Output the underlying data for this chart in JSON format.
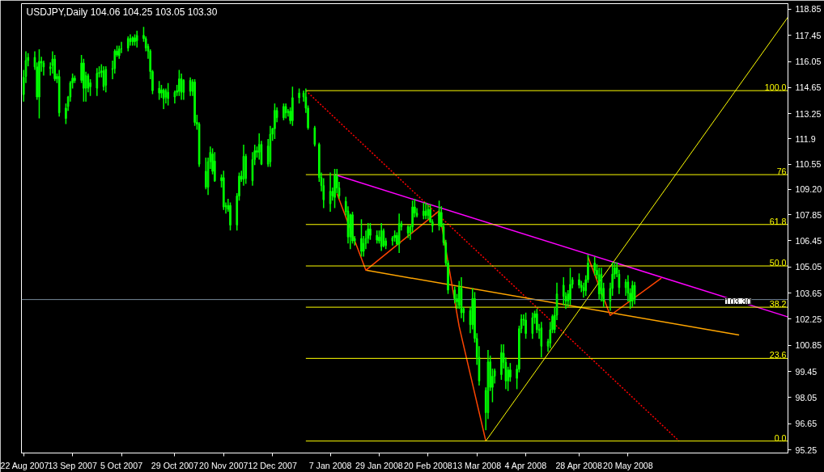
{
  "chart_data": {
    "type": "candlestick",
    "title": "USDJPY,Daily 104.06 104.25 103.05 103.30",
    "color": "#00ff00",
    "x": [
      "2007-08-22",
      "2007-08-23",
      "2007-08-24",
      "2007-08-27",
      "2007-08-28",
      "2007-08-29",
      "2007-08-30",
      "2007-08-31",
      "2007-09-03",
      "2007-09-04",
      "2007-09-05",
      "2007-09-06",
      "2007-09-07",
      "2007-09-10",
      "2007-09-11",
      "2007-09-12",
      "2007-09-13",
      "2007-09-14",
      "2007-09-17",
      "2007-09-18",
      "2007-09-19",
      "2007-09-20",
      "2007-09-21",
      "2007-09-24",
      "2007-09-25",
      "2007-09-26",
      "2007-09-27",
      "2007-09-28",
      "2007-10-01",
      "2007-10-02",
      "2007-10-03",
      "2007-10-04",
      "2007-10-05",
      "2007-10-08",
      "2007-10-09",
      "2007-10-10",
      "2007-10-11",
      "2007-10-12",
      "2007-10-15",
      "2007-10-16",
      "2007-10-17",
      "2007-10-18",
      "2007-10-19",
      "2007-10-22",
      "2007-10-23",
      "2007-10-24",
      "2007-10-25",
      "2007-10-26",
      "2007-10-29",
      "2007-10-30",
      "2007-10-31",
      "2007-11-01",
      "2007-11-02",
      "2007-11-05",
      "2007-11-06",
      "2007-11-07",
      "2007-11-08",
      "2007-11-09",
      "2007-11-12",
      "2007-11-13",
      "2007-11-14",
      "2007-11-15",
      "2007-11-16",
      "2007-11-19",
      "2007-11-20",
      "2007-11-21",
      "2007-11-22",
      "2007-11-23",
      "2007-11-26",
      "2007-11-27",
      "2007-11-28",
      "2007-11-29",
      "2007-11-30",
      "2007-12-03",
      "2007-12-04",
      "2007-12-05",
      "2007-12-06",
      "2007-12-07",
      "2007-12-10",
      "2007-12-11",
      "2007-12-12",
      "2007-12-13",
      "2007-12-14",
      "2007-12-17",
      "2007-12-18",
      "2007-12-19",
      "2007-12-20",
      "2007-12-21",
      "2007-12-24",
      "2007-12-26",
      "2007-12-27",
      "2007-12-28",
      "2007-12-31",
      "2008-01-02",
      "2008-01-03",
      "2008-01-04",
      "2008-01-07",
      "2008-01-08",
      "2008-01-09",
      "2008-01-10",
      "2008-01-11",
      "2008-01-14",
      "2008-01-15",
      "2008-01-16",
      "2008-01-17",
      "2008-01-18",
      "2008-01-21",
      "2008-01-22",
      "2008-01-23",
      "2008-01-24",
      "2008-01-25",
      "2008-01-28",
      "2008-01-29",
      "2008-01-30",
      "2008-01-31",
      "2008-02-01",
      "2008-02-04",
      "2008-02-05",
      "2008-02-06",
      "2008-02-07",
      "2008-02-08",
      "2008-02-11",
      "2008-02-12",
      "2008-02-13",
      "2008-02-14",
      "2008-02-15",
      "2008-02-18",
      "2008-02-19",
      "2008-02-20",
      "2008-02-21",
      "2008-02-22",
      "2008-02-25",
      "2008-02-26",
      "2008-02-27",
      "2008-02-28",
      "2008-02-29",
      "2008-03-03",
      "2008-03-04",
      "2008-03-05",
      "2008-03-06",
      "2008-03-07",
      "2008-03-10",
      "2008-03-11",
      "2008-03-12",
      "2008-03-13",
      "2008-03-14",
      "2008-03-17",
      "2008-03-18",
      "2008-03-19",
      "2008-03-20",
      "2008-03-21",
      "2008-03-24",
      "2008-03-25",
      "2008-03-26",
      "2008-03-27",
      "2008-03-28",
      "2008-03-31",
      "2008-04-01",
      "2008-04-02",
      "2008-04-03",
      "2008-04-04",
      "2008-04-07",
      "2008-04-08",
      "2008-04-09",
      "2008-04-10",
      "2008-04-11",
      "2008-04-14",
      "2008-04-15",
      "2008-04-16",
      "2008-04-17",
      "2008-04-18",
      "2008-04-21",
      "2008-04-22",
      "2008-04-23",
      "2008-04-24",
      "2008-04-25",
      "2008-04-28",
      "2008-04-29",
      "2008-04-30",
      "2008-05-01",
      "2008-05-02",
      "2008-05-05",
      "2008-05-06",
      "2008-05-07",
      "2008-05-08",
      "2008-05-09",
      "2008-05-12",
      "2008-05-13",
      "2008-05-14",
      "2008-05-15",
      "2008-05-16",
      "2008-05-19",
      "2008-05-20",
      "2008-05-21",
      "2008-05-22",
      "2008-05-23"
    ],
    "ohlc": [
      [
        114.28,
        115.6,
        113.9,
        115.21
      ],
      [
        115.25,
        116.6,
        114.9,
        116.1
      ],
      [
        116.1,
        116.5,
        115.8,
        116.27
      ],
      [
        116.27,
        116.6,
        115.6,
        115.76
      ],
      [
        115.76,
        116.0,
        114.0,
        114.15
      ],
      [
        114.15,
        116.7,
        113.0,
        116.06
      ],
      [
        116.06,
        116.3,
        115.5,
        115.97
      ],
      [
        115.97,
        116.1,
        115.3,
        115.76
      ],
      [
        115.76,
        116.0,
        115.3,
        115.67
      ],
      [
        115.84,
        116.6,
        115.4,
        116.18
      ],
      [
        116.18,
        116.4,
        115.0,
        115.12
      ],
      [
        115.12,
        115.4,
        114.9,
        115.25
      ],
      [
        115.25,
        115.6,
        113.1,
        113.3
      ],
      [
        113.55,
        113.8,
        112.7,
        113.0
      ],
      [
        113.64,
        114.2,
        113.4,
        114.15
      ],
      [
        114.15,
        115.0,
        113.9,
        114.91
      ],
      [
        114.91,
        115.4,
        114.6,
        115.16
      ],
      [
        115.16,
        115.3,
        114.9,
        115.03
      ],
      [
        115.04,
        116.4,
        114.9,
        115.97
      ],
      [
        115.97,
        116.2,
        113.9,
        114.62
      ],
      [
        114.62,
        115.5,
        113.9,
        115.29
      ],
      [
        115.29,
        115.4,
        114.4,
        114.62
      ],
      [
        114.7,
        115.1,
        114.2,
        114.91
      ],
      [
        114.62,
        115.7,
        114.2,
        115.42
      ],
      [
        115.42,
        115.8,
        115.2,
        115.46
      ],
      [
        115.46,
        115.9,
        115.2,
        115.55
      ],
      [
        115.55,
        115.8,
        114.5,
        114.7
      ],
      [
        114.78,
        115.8,
        114.4,
        115.63
      ],
      [
        115.63,
        116.1,
        115.1,
        115.67
      ],
      [
        115.67,
        116.7,
        115.4,
        116.61
      ],
      [
        116.61,
        116.9,
        116.3,
        116.4
      ],
      [
        116.36,
        116.9,
        116.2,
        116.73
      ],
      [
        116.73,
        117.1,
        116.5,
        116.73
      ],
      [
        116.77,
        117.4,
        116.6,
        117.28
      ],
      [
        117.28,
        117.5,
        116.9,
        117.11
      ],
      [
        117.11,
        117.4,
        116.9,
        117.32
      ],
      [
        117.32,
        117.5,
        116.9,
        117.11
      ],
      [
        117.16,
        117.7,
        116.8,
        117.45
      ],
      [
        117.45,
        117.9,
        117.1,
        117.28
      ],
      [
        117.28,
        117.4,
        116.6,
        116.78
      ],
      [
        116.86,
        117.0,
        116.2,
        116.61
      ],
      [
        116.61,
        116.7,
        115.1,
        115.51
      ],
      [
        115.51,
        115.6,
        114.3,
        114.49
      ],
      [
        114.62,
        115.0,
        114.0,
        114.36
      ],
      [
        114.36,
        114.8,
        114.1,
        114.53
      ],
      [
        114.53,
        114.6,
        113.5,
        114.07
      ],
      [
        114.15,
        114.6,
        113.8,
        114.49
      ],
      [
        114.4,
        114.9,
        113.7,
        114.07
      ],
      [
        114.15,
        114.5,
        113.8,
        114.4
      ],
      [
        114.4,
        114.8,
        114.2,
        114.49
      ],
      [
        114.45,
        115.6,
        114.2,
        115.12
      ],
      [
        115.12,
        115.4,
        114.0,
        114.4
      ],
      [
        114.4,
        115.1,
        114.0,
        115.04
      ],
      [
        115.04,
        115.2,
        114.2,
        114.45
      ],
      [
        114.45,
        115.1,
        114.2,
        114.95
      ],
      [
        114.95,
        115.1,
        112.6,
        112.79
      ],
      [
        112.79,
        113.2,
        112.4,
        112.7
      ],
      [
        112.7,
        112.8,
        110.4,
        110.55
      ],
      [
        110.17,
        110.9,
        109.2,
        109.32
      ],
      [
        109.32,
        110.9,
        108.9,
        110.68
      ],
      [
        110.68,
        111.5,
        110.3,
        111.19
      ],
      [
        111.1,
        111.4,
        110.0,
        110.17
      ],
      [
        110.72,
        111.2,
        109.6,
        109.66
      ],
      [
        109.66,
        110.0,
        109.3,
        109.83
      ],
      [
        109.83,
        110.2,
        108.1,
        108.26
      ],
      [
        108.26,
        108.5,
        107.9,
        108.34
      ],
      [
        108.34,
        108.7,
        108.0,
        108.13
      ],
      [
        108.34,
        108.5,
        107.0,
        107.29
      ],
      [
        107.29,
        109.0,
        107.0,
        108.85
      ],
      [
        108.85,
        110.1,
        108.6,
        109.91
      ],
      [
        109.91,
        110.2,
        109.6,
        109.74
      ],
      [
        109.74,
        111.6,
        109.4,
        110.97
      ],
      [
        110.97,
        111.1,
        109.5,
        109.78
      ],
      [
        109.66,
        111.2,
        109.4,
        110.8
      ],
      [
        110.8,
        111.6,
        110.5,
        111.27
      ],
      [
        111.27,
        111.5,
        110.9,
        111.19
      ],
      [
        111.19,
        112.2,
        110.8,
        111.61
      ],
      [
        111.61,
        111.8,
        110.5,
        110.55
      ],
      [
        110.55,
        111.9,
        110.4,
        111.52
      ],
      [
        110.68,
        112.6,
        110.4,
        112.16
      ],
      [
        112.16,
        112.5,
        111.8,
        112.45
      ],
      [
        112.45,
        113.8,
        111.9,
        113.43
      ],
      [
        113.43,
        113.6,
        112.8,
        113.04
      ],
      [
        113.04,
        113.8,
        112.9,
        113.64
      ],
      [
        113.64,
        113.8,
        113.0,
        113.3
      ],
      [
        113.3,
        113.5,
        113.1,
        113.39
      ],
      [
        113.39,
        113.6,
        112.7,
        112.88
      ],
      [
        112.88,
        114.7,
        112.6,
        114.11
      ],
      [
        114.11,
        114.6,
        113.8,
        114.36
      ],
      [
        114.36,
        114.5,
        113.9,
        114.15
      ],
      [
        114.15,
        114.6,
        113.3,
        113.55
      ],
      [
        113.55,
        113.7,
        112.4,
        112.5
      ],
      [
        112.5,
        112.6,
        111.5,
        111.61
      ],
      [
        111.61,
        111.7,
        109.6,
        109.83
      ],
      [
        109.83,
        110.1,
        109.1,
        109.4
      ],
      [
        109.4,
        109.8,
        108.2,
        108.64
      ],
      [
        108.43,
        110.1,
        108.0,
        109.1
      ],
      [
        109.1,
        109.3,
        108.6,
        108.85
      ],
      [
        108.77,
        110.3,
        108.2,
        109.95
      ],
      [
        109.91,
        110.3,
        109.0,
        109.28
      ],
      [
        109.28,
        109.6,
        108.7,
        108.85
      ],
      [
        108.56,
        108.8,
        107.8,
        108.0
      ],
      [
        108.04,
        108.3,
        106.3,
        106.65
      ],
      [
        106.65,
        107.9,
        106.0,
        107.84
      ],
      [
        107.84,
        108.0,
        106.3,
        106.44
      ],
      [
        106.44,
        106.7,
        106.2,
        106.57
      ],
      [
        106.57,
        107.6,
        105.6,
        105.88
      ],
      [
        105.88,
        106.7,
        105.6,
        106.31
      ],
      [
        106.31,
        107.0,
        106.0,
        106.57
      ],
      [
        106.57,
        107.4,
        106.3,
        107.08
      ],
      [
        107.08,
        107.4,
        106.5,
        106.74
      ],
      [
        106.74,
        107.0,
        106.3,
        106.48
      ],
      [
        106.44,
        107.0,
        106.3,
        106.65
      ],
      [
        106.14,
        107.4,
        105.9,
        106.99
      ],
      [
        106.99,
        107.1,
        106.1,
        106.19
      ],
      [
        106.19,
        106.6,
        106.0,
        106.44
      ],
      [
        106.44,
        106.7,
        106.2,
        106.61
      ],
      [
        106.61,
        107.0,
        106.4,
        106.74
      ],
      [
        106.74,
        106.9,
        106.2,
        106.27
      ],
      [
        106.27,
        107.9,
        105.8,
        107.37
      ],
      [
        107.37,
        107.5,
        107.0,
        107.2
      ],
      [
        107.2,
        107.3,
        106.6,
        106.86
      ],
      [
        106.86,
        107.3,
        106.5,
        107.2
      ],
      [
        107.2,
        108.6,
        106.9,
        108.26
      ],
      [
        108.26,
        108.7,
        107.7,
        107.93
      ],
      [
        107.93,
        108.2,
        107.7,
        107.8
      ],
      [
        107.8,
        108.5,
        107.6,
        108.04
      ],
      [
        108.04,
        108.5,
        107.6,
        107.8
      ],
      [
        107.8,
        108.4,
        107.6,
        108.13
      ],
      [
        108.13,
        108.4,
        107.4,
        107.46
      ],
      [
        107.46,
        107.6,
        106.9,
        107.25
      ],
      [
        107.25,
        108.6,
        107.0,
        107.97
      ],
      [
        107.97,
        108.3,
        107.2,
        107.2
      ],
      [
        107.2,
        107.4,
        106.2,
        106.35
      ],
      [
        106.35,
        106.5,
        105.1,
        105.25
      ],
      [
        105.25,
        105.4,
        103.6,
        103.81
      ],
      [
        103.81,
        104.0,
        103.1,
        103.35
      ],
      [
        103.35,
        103.6,
        102.8,
        103.18
      ],
      [
        102.98,
        104.3,
        102.8,
        103.98
      ],
      [
        103.9,
        104.5,
        102.3,
        102.59
      ],
      [
        102.59,
        102.9,
        102.1,
        102.8
      ],
      [
        102.71,
        102.9,
        101.5,
        101.95
      ],
      [
        101.95,
        103.9,
        101.7,
        103.35
      ],
      [
        103.35,
        103.7,
        101.0,
        101.22
      ],
      [
        101.22,
        101.5,
        99.8,
        100.21
      ],
      [
        100.21,
        100.8,
        98.7,
        98.94
      ],
      [
        98.43,
        98.6,
        96.3,
        97.24
      ],
      [
        97.24,
        100.6,
        96.9,
        99.96
      ],
      [
        99.96,
        100.3,
        98.4,
        98.6
      ],
      [
        98.6,
        99.6,
        97.8,
        99.19
      ],
      [
        99.19,
        99.6,
        98.8,
        99.49
      ],
      [
        99.28,
        100.9,
        99.0,
        100.46
      ],
      [
        100.42,
        100.9,
        99.6,
        99.94
      ],
      [
        99.94,
        100.2,
        98.5,
        98.94
      ],
      [
        98.94,
        99.7,
        98.4,
        99.53
      ],
      [
        99.53,
        99.9,
        98.9,
        99.15
      ],
      [
        99.08,
        99.8,
        98.5,
        99.57
      ],
      [
        99.57,
        101.9,
        99.4,
        101.74
      ],
      [
        101.74,
        102.5,
        101.5,
        102.25
      ],
      [
        102.25,
        102.5,
        101.9,
        102.2
      ],
      [
        102.2,
        102.6,
        101.2,
        101.48
      ],
      [
        101.48,
        102.6,
        101.2,
        102.33
      ],
      [
        102.33,
        102.7,
        102.0,
        102.54
      ],
      [
        102.54,
        102.8,
        101.5,
        101.69
      ],
      [
        101.69,
        102.0,
        101.2,
        101.65
      ],
      [
        101.78,
        102.1,
        100.2,
        100.8
      ],
      [
        100.8,
        101.2,
        100.5,
        101.05
      ],
      [
        100.97,
        102.1,
        100.7,
        101.69
      ],
      [
        101.69,
        102.5,
        101.5,
        102.4
      ],
      [
        101.69,
        102.9,
        101.5,
        102.46
      ],
      [
        102.46,
        104.2,
        102.2,
        103.6
      ],
      [
        103.47,
        104.5,
        103.0,
        104.07
      ],
      [
        103.47,
        103.7,
        102.8,
        103.22
      ],
      [
        103.22,
        103.8,
        102.9,
        103.6
      ],
      [
        103.3,
        105.0,
        103.0,
        104.11
      ],
      [
        104.11,
        104.5,
        103.9,
        104.36
      ],
      [
        104.36,
        104.7,
        103.9,
        104.07
      ],
      [
        104.07,
        104.3,
        103.7,
        103.94
      ],
      [
        103.94,
        104.2,
        103.4,
        103.77
      ],
      [
        103.77,
        104.6,
        103.5,
        104.36
      ],
      [
        104.36,
        105.7,
        104.2,
        105.25
      ],
      [
        105.25,
        105.6,
        104.6,
        104.87
      ],
      [
        104.87,
        105.2,
        104.4,
        104.62
      ],
      [
        104.62,
        105.0,
        103.3,
        103.6
      ],
      [
        103.6,
        105.0,
        103.2,
        104.66
      ],
      [
        103.9,
        104.2,
        102.9,
        103.22
      ],
      [
        103.22,
        104.2,
        102.7,
        103.9
      ],
      [
        103.9,
        105.3,
        103.5,
        104.66
      ],
      [
        104.66,
        105.3,
        104.4,
        105.0
      ],
      [
        105.0,
        105.3,
        104.5,
        104.7
      ],
      [
        104.66,
        104.9,
        103.6,
        103.94
      ],
      [
        103.94,
        104.4,
        103.5,
        104.24
      ],
      [
        104.24,
        104.6,
        103.2,
        103.64
      ],
      [
        103.64,
        103.9,
        102.8,
        103.22
      ],
      [
        103.22,
        104.3,
        102.9,
        104.06
      ],
      [
        104.06,
        104.25,
        103.05,
        103.3
      ]
    ],
    "series": [
      {
        "type": "line",
        "x": [
          "2007-12-27",
          "2008-06-12"
        ],
        "values": [
          114.49,
          95.72
        ],
        "color": "#ff0000",
        "line_style": "dotted"
      },
      {
        "type": "line",
        "x": [
          "2008-01-09",
          "2008-07-31"
        ],
        "values": [
          109.99,
          102.37
        ],
        "color": "#ff00ff"
      },
      {
        "type": "line",
        "x": [
          "2008-01-23",
          "2008-07-09"
        ],
        "values": [
          104.87,
          101.4
        ],
        "color": "#ffa500"
      },
      {
        "type": "line",
        "x": [
          "2008-01-10",
          "2008-01-23",
          "2008-02-25",
          "2008-03-05",
          "2008-03-17"
        ],
        "values": [
          108.98,
          104.87,
          108.05,
          101.86,
          95.72
        ],
        "color": "#ff4500"
      },
      {
        "type": "line",
        "x": [
          "2008-05-02",
          "2008-05-12",
          "2008-06-04"
        ],
        "values": [
          105.59,
          102.45,
          104.45
        ],
        "color": "#ff4500"
      },
      {
        "type": "line",
        "x": [
          "2008-03-17",
          "2008-07-31"
        ],
        "values": [
          95.72,
          118.43
        ],
        "color": "#ffff00"
      },
      {
        "type": "line",
        "x": [
          "2007-12-27",
          "2008-07-31"
        ],
        "values": [
          114.49,
          114.49
        ],
        "color": "#ffff00"
      },
      {
        "type": "line",
        "x": [
          "2007-12-27",
          "2008-07-31"
        ],
        "values": [
          109.99,
          109.99
        ],
        "color": "#ffff00"
      },
      {
        "type": "line",
        "x": [
          "2007-12-27",
          "2008-07-31"
        ],
        "values": [
          107.32,
          107.32
        ],
        "color": "#ffff00"
      },
      {
        "type": "line",
        "x": [
          "2007-12-27",
          "2008-07-31"
        ],
        "values": [
          105.1,
          105.1
        ],
        "color": "#ffff00"
      },
      {
        "type": "line",
        "x": [
          "2007-12-27",
          "2008-07-31"
        ],
        "values": [
          102.89,
          102.89
        ],
        "color": "#ffff00"
      },
      {
        "type": "line",
        "x": [
          "2007-12-27",
          "2008-07-31"
        ],
        "values": [
          100.15,
          100.15
        ],
        "color": "#ffff00"
      },
      {
        "type": "line",
        "x": [
          "2007-12-27",
          "2008-07-31"
        ],
        "values": [
          95.72,
          95.72
        ],
        "color": "#ffff00"
      }
    ],
    "ref_lines": [
      {
        "axis": "y",
        "value": 103.3,
        "label": "103.30",
        "color": "#778899"
      }
    ],
    "annotations": [
      {
        "text": "100.0",
        "x": "2008-07-31",
        "y": 114.49
      },
      {
        "text": "76",
        "x": "2008-07-31",
        "y": 109.99
      },
      {
        "text": "61.8",
        "x": "2008-07-31",
        "y": 107.32
      },
      {
        "text": "50.0",
        "x": "2008-07-31",
        "y": 105.1
      },
      {
        "text": "38.2",
        "x": "2008-07-31",
        "y": 102.89
      },
      {
        "text": "23.6",
        "x": "2008-07-31",
        "y": 100.15
      },
      {
        "text": "0.0",
        "x": "2008-07-31",
        "y": 95.72
      }
    ],
    "xlim": [
      "2007-08-21",
      "2008-07-31"
    ],
    "ylim": [
      95.08,
      119.15
    ],
    "xticks": [
      {
        "value": "2007-08-22",
        "label": "22 Aug 2007"
      },
      {
        "value": "2007-09-13",
        "label": "13 Sep 2007"
      },
      {
        "value": "2007-10-05",
        "label": "5 Oct 2007"
      },
      {
        "value": "2007-10-29",
        "label": "29 Oct 2007"
      },
      {
        "value": "2007-11-20",
        "label": "20 Nov 2007"
      },
      {
        "value": "2007-12-12",
        "label": "12 Dec 2007"
      },
      {
        "value": "2008-01-07",
        "label": "7 Jan 2008"
      },
      {
        "value": "2008-01-29",
        "label": "29 Jan 2008"
      },
      {
        "value": "2008-02-20",
        "label": "20 Feb 2008"
      },
      {
        "value": "2008-03-13",
        "label": "13 Mar 2008"
      },
      {
        "value": "2008-04-04",
        "label": "4 Apr 2008"
      },
      {
        "value": "2008-04-28",
        "label": "28 Apr 2008"
      },
      {
        "value": "2008-05-20",
        "label": "20 May 2008"
      }
    ],
    "yticks": [
      95.25,
      96.65,
      98.05,
      99.45,
      100.85,
      102.25,
      103.65,
      105.05,
      106.45,
      107.85,
      {
        "value": 109.2,
        "label": "109.20"
      },
      110.55,
      111.9,
      113.25,
      114.65,
      116.05,
      117.45,
      118.85
    ]
  }
}
